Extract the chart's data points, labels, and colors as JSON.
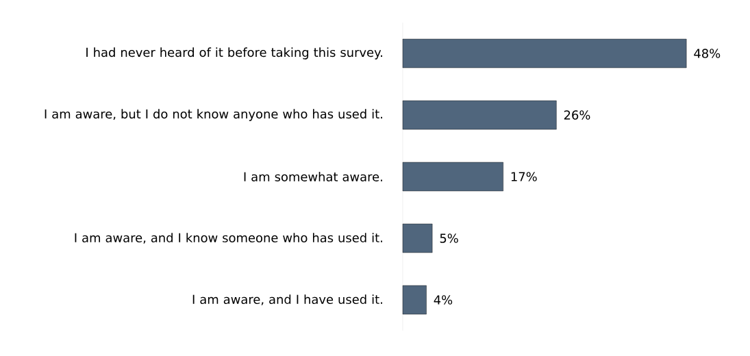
{
  "chart_data": {
    "type": "bar",
    "orientation": "horizontal",
    "categories": [
      "I had never heard of it before taking this survey.",
      "I am aware, but I do not know anyone who has used it.",
      "I am somewhat aware.",
      "I am aware, and I know someone who has used it.",
      "I am aware, and I have used it."
    ],
    "values": [
      48,
      26,
      17,
      5,
      4
    ],
    "value_labels": [
      "48%",
      "26%",
      "17%",
      "5%",
      "4%"
    ],
    "color": "#50667d"
  }
}
